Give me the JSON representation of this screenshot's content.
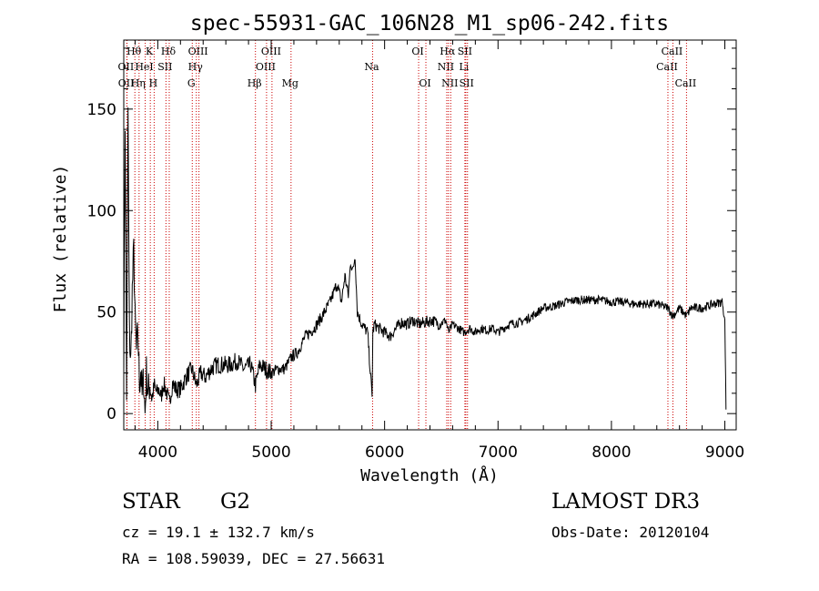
{
  "chart_data": {
    "type": "line",
    "title": "spec-55931-GAC_106N28_M1_sp06-242.fits",
    "xlabel": "Wavelength (Å)",
    "ylabel": "Flux (relative)",
    "xlim": [
      3700,
      9100
    ],
    "ylim": [
      -8,
      184
    ],
    "xticks": [
      4000,
      5000,
      6000,
      7000,
      8000,
      9000
    ],
    "yticks": [
      0,
      50,
      100,
      150
    ],
    "grid": false,
    "line_color": "#000000",
    "marker_color": "#cc0000",
    "series": [
      {
        "x": [
          3700,
          3712,
          3725,
          3738,
          3750,
          3762,
          3775,
          3788,
          3800,
          3812,
          3825,
          3838,
          3850,
          3862,
          3875,
          3888,
          3900,
          3915,
          3930,
          3950,
          3970,
          3990,
          4010,
          4030,
          4050,
          4080,
          4101,
          4130,
          4160,
          4200,
          4250,
          4300,
          4340,
          4380,
          4420,
          4470,
          4520,
          4580,
          4640,
          4700,
          4760,
          4820,
          4861,
          4900,
          4950,
          5000,
          5060,
          5120,
          5180,
          5230,
          5300,
          5380,
          5450,
          5520,
          5580,
          5620,
          5650,
          5680,
          5700,
          5720,
          5740,
          5760,
          5800,
          5850,
          5890,
          5896,
          5910,
          5950,
          6000,
          6050,
          6100,
          6150,
          6200,
          6250,
          6300,
          6360,
          6420,
          6480,
          6540,
          6563,
          6600,
          6650,
          6700,
          6750,
          6800,
          6850,
          6900,
          6950,
          7000,
          7100,
          7200,
          7300,
          7400,
          7500,
          7600,
          7700,
          7800,
          7900,
          8000,
          8100,
          8200,
          8300,
          8400,
          8498,
          8542,
          8600,
          8662,
          8700,
          8800,
          8900,
          8980,
          9000,
          9010
        ],
        "y": [
          30,
          145,
          10,
          150,
          40,
          25,
          60,
          80,
          45,
          30,
          40,
          15,
          22,
          8,
          18,
          0,
          20,
          10,
          15,
          8,
          14,
          10,
          12,
          8,
          15,
          10,
          5,
          15,
          12,
          12,
          18,
          22,
          14,
          20,
          18,
          22,
          24,
          24,
          24,
          26,
          22,
          24,
          14,
          24,
          22,
          20,
          22,
          22,
          28,
          30,
          38,
          42,
          48,
          55,
          64,
          55,
          68,
          58,
          75,
          70,
          78,
          50,
          44,
          40,
          8,
          40,
          44,
          42,
          40,
          38,
          42,
          45,
          44,
          46,
          44,
          45,
          46,
          44,
          46,
          40,
          44,
          42,
          40,
          42,
          40,
          42,
          41,
          42,
          40,
          44,
          45,
          48,
          52,
          53,
          55,
          56,
          56,
          56,
          55,
          55,
          54,
          54,
          54,
          52,
          48,
          52,
          48,
          52,
          52,
          54,
          55,
          45,
          2
        ]
      }
    ],
    "line_markers": [
      {
        "name": "OII",
        "x": 3727,
        "row": 1
      },
      {
        "name": "OII",
        "x": 3729,
        "row": 2
      },
      {
        "name": "Hθ",
        "x": 3798,
        "row": 0
      },
      {
        "name": "Hη",
        "x": 3835,
        "row": 2
      },
      {
        "name": "HeI",
        "x": 3889,
        "row": 1
      },
      {
        "name": "K",
        "x": 3934,
        "row": 0
      },
      {
        "name": "H",
        "x": 3968,
        "row": 2
      },
      {
        "name": "SII",
        "x": 4072,
        "row": 1
      },
      {
        "name": "Hδ",
        "x": 4101,
        "row": 0
      },
      {
        "name": "G",
        "x": 4304,
        "row": 2
      },
      {
        "name": "Hγ",
        "x": 4340,
        "row": 1
      },
      {
        "name": "OIII",
        "x": 4363,
        "row": 0
      },
      {
        "name": "Hβ",
        "x": 4861,
        "row": 2
      },
      {
        "name": "OIII",
        "x": 4959,
        "row": 1
      },
      {
        "name": "OIII",
        "x": 5007,
        "row": 0
      },
      {
        "name": "Mg",
        "x": 5175,
        "row": 2
      },
      {
        "name": "Na",
        "x": 5894,
        "row": 1
      },
      {
        "name": "OI",
        "x": 6300,
        "row": 0
      },
      {
        "name": "OI",
        "x": 6364,
        "row": 2
      },
      {
        "name": "NII",
        "x": 6548,
        "row": 1
      },
      {
        "name": "Hα",
        "x": 6563,
        "row": 0
      },
      {
        "name": "NII",
        "x": 6583,
        "row": 2
      },
      {
        "name": "Li",
        "x": 6708,
        "row": 1
      },
      {
        "name": "SII",
        "x": 6716,
        "row": 0
      },
      {
        "name": "SII",
        "x": 6731,
        "row": 2
      },
      {
        "name": "CaII",
        "x": 8498,
        "row": 1
      },
      {
        "name": "CaII",
        "x": 8542,
        "row": 0
      },
      {
        "name": "CaII",
        "x": 8662,
        "row": 2
      }
    ]
  },
  "info": {
    "object_class": "STAR",
    "subclass": "G2",
    "survey": "LAMOST DR3",
    "redshift_text": "cz = 19.1 ± 132.7 km/s",
    "obs_date_text": "Obs-Date: 20120104",
    "coords_text": "RA = 108.59039, DEC =  27.56631"
  }
}
